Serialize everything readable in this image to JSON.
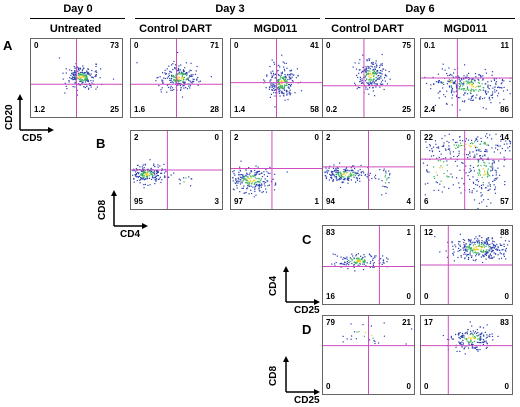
{
  "headers": {
    "day0": "Day 0",
    "day3": "Day 3",
    "day6": "Day 6",
    "untreated": "Untreated",
    "control_dart_d3": "Control DART",
    "mgd011_d3": "MGD011",
    "control_dart_d6": "Control DART",
    "mgd011_d6": "MGD011"
  },
  "rows": {
    "A": {
      "label": "A",
      "y_axis": "CD20",
      "x_axis": "CD5"
    },
    "B": {
      "label": "B",
      "y_axis": "CD8",
      "x_axis": "CD4"
    },
    "C": {
      "label": "C",
      "y_axis": "CD4",
      "x_axis": "CD25"
    },
    "D": {
      "label": "D",
      "y_axis": "CD8",
      "x_axis": "CD25"
    }
  },
  "panels": [
    {
      "id": "A-untreated",
      "quadrants": {
        "tl": "0",
        "tr": "73",
        "bl": "1.2",
        "br": "25"
      }
    },
    {
      "id": "A-control-d3",
      "quadrants": {
        "tl": "0",
        "tr": "71",
        "bl": "1.6",
        "br": "28"
      }
    },
    {
      "id": "A-mgd011-d3",
      "quadrants": {
        "tl": "0",
        "tr": "41",
        "bl": "1.4",
        "br": "58"
      }
    },
    {
      "id": "A-control-d6",
      "quadrants": {
        "tl": "0",
        "tr": "75",
        "bl": "0.2",
        "br": "25"
      }
    },
    {
      "id": "A-mgd011-d6",
      "quadrants": {
        "tl": "0.1",
        "tr": "11",
        "bl": "2.4",
        "br": "86"
      }
    },
    {
      "id": "B-control-d3",
      "quadrants": {
        "tl": "2",
        "tr": "0",
        "bl": "95",
        "br": "3"
      }
    },
    {
      "id": "B-mgd011-d3",
      "quadrants": {
        "tl": "2",
        "tr": "0",
        "bl": "97",
        "br": "1"
      }
    },
    {
      "id": "B-control-d6",
      "quadrants": {
        "tl": "2",
        "tr": "0",
        "bl": "94",
        "br": "4"
      }
    },
    {
      "id": "B-mgd011-d6",
      "quadrants": {
        "tl": "22",
        "tr": "14",
        "bl": "6",
        "br": "57"
      }
    },
    {
      "id": "C-control-d6",
      "quadrants": {
        "tl": "83",
        "tr": "1",
        "bl": "16",
        "br": "0"
      }
    },
    {
      "id": "C-mgd011-d6",
      "quadrants": {
        "tl": "12",
        "tr": "88",
        "bl": "0",
        "br": "0"
      }
    },
    {
      "id": "D-control-d6",
      "quadrants": {
        "tl": "79",
        "tr": "21",
        "bl": "0",
        "br": "0"
      }
    },
    {
      "id": "D-mgd011-d6",
      "quadrants": {
        "tl": "17",
        "tr": "83",
        "bl": "0",
        "br": "0"
      }
    }
  ],
  "colors": {
    "gate": "#d24cc0",
    "dot": "#2a3fb0",
    "dense": "#35b05a",
    "core": "#f0d020"
  }
}
